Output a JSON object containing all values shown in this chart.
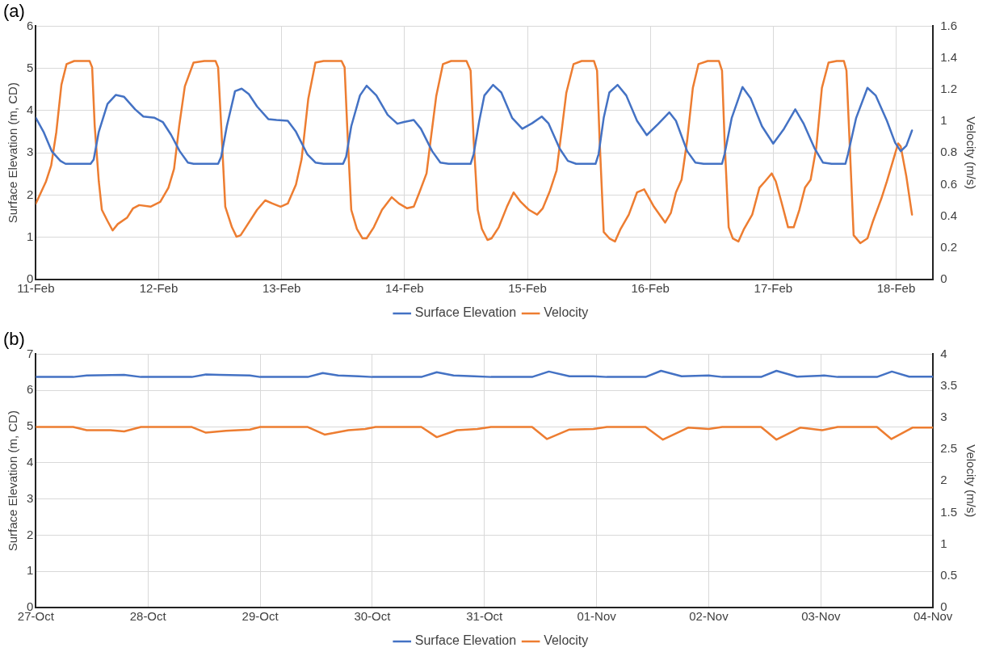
{
  "chart_data": [
    {
      "type": "line",
      "title": "(a)",
      "ylabel": "Surface Elevation (m, CD)",
      "y2label": "Velocity (m/s)",
      "grid": true,
      "legend": "bottom",
      "xlim": [
        "--02-11",
        "--02-18T07:12"
      ],
      "xticks": [
        {
          "value": "--02-11",
          "label": "11-Feb"
        },
        {
          "value": "--02-12",
          "label": "12-Feb"
        },
        {
          "value": "--02-13",
          "label": "13-Feb"
        },
        {
          "value": "--02-14",
          "label": "14-Feb"
        },
        {
          "value": "--02-15",
          "label": "15-Feb"
        },
        {
          "value": "--02-16",
          "label": "16-Feb"
        },
        {
          "value": "--02-17",
          "label": "17-Feb"
        },
        {
          "value": "--02-18",
          "label": "18-Feb"
        }
      ],
      "ylim": [
        0,
        6
      ],
      "yticks": [
        0,
        1,
        2,
        3,
        4,
        5,
        6
      ],
      "y2lim": [
        0,
        1.6
      ],
      "y2ticks": [
        0,
        0.2,
        0.4,
        0.6,
        0.8,
        1,
        1.2,
        1.4,
        1.6
      ],
      "series": [
        {
          "name": "Surface Elevation",
          "color": "#4472c4",
          "x": [
            "--02-11T00:00",
            "--02-11T01:30",
            "--02-11T03:06",
            "--02-11T04:48",
            "--02-11T05:48",
            "--02-11T10:42",
            "--02-11T11:18",
            "--02-11T12:18",
            "--02-11T14:00",
            "--02-11T15:36",
            "--02-11T17:12",
            "--02-11T19:24",
            "--02-11T21:00",
            "--02-11T23:12",
            "--02-12T00:48",
            "--02-12T02:24",
            "--02-12T04:06",
            "--02-12T05:42",
            "--02-12T06:48",
            "--02-12T11:36",
            "--02-12T12:12",
            "--02-12T13:18",
            "--02-12T14:54",
            "--02-12T16:12",
            "--02-12T17:36",
            "--02-12T19:12",
            "--02-12T21:24",
            "--02-12T23:00",
            "--02-13T01:12",
            "--02-13T02:48",
            "--02-13T05:00",
            "--02-13T06:36",
            "--02-13T08:12",
            "--02-13T12:00",
            "--02-13T12:36",
            "--02-13T13:36",
            "--02-13T15:18",
            "--02-13T16:36",
            "--02-13T18:30",
            "--02-13T20:42",
            "--02-13T22:36",
            "--02-13T23:54",
            "--02-14T01:48",
            "--02-14T03:12",
            "--02-14T05:24",
            "--02-14T07:00",
            "--02-14T08:36",
            "--02-14T12:54",
            "--02-14T13:30",
            "--02-14T14:36",
            "--02-14T15:36",
            "--02-14T17:18",
            "--02-14T18:54",
            "--02-14T21:00",
            "--02-14T23:00",
            "--02-15T00:54",
            "--02-15T02:48",
            "--02-15T04:06",
            "--02-15T06:18",
            "--02-15T07:54",
            "--02-15T09:30",
            "--02-15T13:18",
            "--02-15T13:54",
            "--02-15T14:54",
            "--02-15T16:00",
            "--02-15T17:36",
            "--02-15T19:18",
            "--02-15T21:24",
            "--02-15T23:18",
            "--02-16T01:30",
            "--02-16T03:42",
            "--02-16T05:00",
            "--02-16T07:12",
            "--02-16T08:48",
            "--02-16T10:24",
            "--02-16T14:00",
            "--02-16T14:30",
            "--02-16T15:54",
            "--02-16T18:00",
            "--02-16T19:36",
            "--02-16T21:48",
            "--02-17T00:00",
            "--02-17T02:06",
            "--02-17T04:18",
            "--02-17T05:54",
            "--02-17T08:06",
            "--02-17T09:42",
            "--02-17T11:24",
            "--02-17T14:06",
            "--02-17T14:36",
            "--02-17T16:12",
            "--02-17T18:24",
            "--02-17T20:00",
            "--02-17T22:12",
            "--02-17T23:48",
            "--02-18T00:54",
            "--02-18T02:00",
            "--02-18T03:06"
          ],
          "values": [
            3.83,
            3.5,
            3.04,
            2.81,
            2.74,
            2.74,
            2.84,
            3.5,
            4.16,
            4.37,
            4.33,
            4.03,
            3.86,
            3.83,
            3.73,
            3.43,
            3.04,
            2.77,
            2.74,
            2.74,
            2.91,
            3.63,
            4.46,
            4.52,
            4.39,
            4.1,
            3.8,
            3.78,
            3.76,
            3.5,
            2.97,
            2.77,
            2.74,
            2.74,
            2.91,
            3.63,
            4.36,
            4.59,
            4.36,
            3.9,
            3.69,
            3.73,
            3.78,
            3.57,
            3.04,
            2.77,
            2.74,
            2.74,
            2.97,
            3.76,
            4.36,
            4.61,
            4.43,
            3.83,
            3.57,
            3.7,
            3.86,
            3.7,
            3.1,
            2.81,
            2.74,
            2.74,
            2.97,
            3.83,
            4.43,
            4.61,
            4.36,
            3.76,
            3.42,
            3.68,
            3.96,
            3.76,
            3.04,
            2.77,
            2.74,
            2.74,
            2.97,
            3.83,
            4.56,
            4.29,
            3.63,
            3.22,
            3.57,
            4.03,
            3.7,
            3.1,
            2.77,
            2.74,
            2.74,
            2.97,
            3.83,
            4.54,
            4.36,
            3.76,
            3.24,
            3.04,
            3.17,
            3.53
          ]
        },
        {
          "name": "Velocity",
          "color": "#ed7d31",
          "axis": "y2",
          "x": [
            "--02-11T00:00",
            "--02-11T02:00",
            "--02-11T03:00",
            "--02-11T04:00",
            "--02-11T05:00",
            "--02-11T06:00",
            "--02-11T07:30",
            "--02-11T10:30",
            "--02-11T11:00",
            "--02-11T11:30",
            "--02-11T12:18",
            "--02-11T12:54",
            "--02-11T14:00",
            "--02-11T15:00",
            "--02-11T16:00",
            "--02-11T17:48",
            "--02-11T19:00",
            "--02-11T20:12",
            "--02-11T22:24",
            "--02-12T00:18",
            "--02-12T01:54",
            "--02-12T03:00",
            "--02-12T04:00",
            "--02-12T05:06",
            "--02-12T06:48",
            "--02-12T08:54",
            "--02-12T11:06",
            "--02-12T11:36",
            "--02-12T12:12",
            "--02-12T13:00",
            "--02-12T14:18",
            "--02-12T15:12",
            "--02-12T16:00",
            "--02-12T17:00",
            "--02-12T19:12",
            "--02-12T20:48",
            "--02-12T22:12",
            "--02-12T23:48",
            "--02-13T01:12",
            "--02-13T02:48",
            "--02-13T03:54",
            "--02-13T05:12",
            "--02-13T06:36",
            "--02-13T08:12",
            "--02-13T11:42",
            "--02-13T12:18",
            "--02-13T12:48",
            "--02-13T13:36",
            "--02-13T14:42",
            "--02-13T15:48",
            "--02-13T16:36",
            "--02-13T18:00",
            "--02-13T19:36",
            "--02-13T21:30",
            "--02-13T22:54",
            "--02-14T00:30",
            "--02-14T01:48",
            "--02-14T02:54",
            "--02-14T04:18",
            "--02-14T05:06",
            "--02-14T06:12",
            "--02-14T07:30",
            "--02-14T09:06",
            "--02-14T12:06",
            "--02-14T12:54",
            "--02-14T13:30",
            "--02-14T14:18",
            "--02-14T15:06",
            "--02-14T16:12",
            "--02-14T17:00",
            "--02-14T18:24",
            "--02-14T20:00",
            "--02-14T21:18",
            "--02-14T22:42",
            "--02-15T00:18",
            "--02-15T01:54",
            "--02-15T03:00",
            "--02-15T04:24",
            "--02-15T05:42",
            "--02-15T06:48",
            "--02-15T07:36",
            "--02-15T09:00",
            "--02-15T10:36",
            "--02-15T13:00",
            "--02-15T13:36",
            "--02-15T14:06",
            "--02-15T14:54",
            "--02-15T16:00",
            "--02-15T17:06",
            "--02-15T18:12",
            "--02-15T19:48",
            "--02-15T21:24",
            "--02-15T22:48",
            "--02-16T00:42",
            "--02-16T02:54",
            "--02-16T04:00",
            "--02-16T05:00",
            "--02-16T06:06",
            "--02-16T07:12",
            "--02-16T08:18",
            "--02-16T09:24",
            "--02-16T11:12",
            "--02-16T13:24",
            "--02-16T14:00",
            "--02-16T14:30",
            "--02-16T15:18",
            "--02-16T16:06",
            "--02-16T17:12",
            "--02-16T18:18",
            "--02-16T19:54",
            "--02-16T21:18",
            "--02-16T22:24",
            "--02-16T23:42",
            "--02-17T00:30",
            "--02-17T01:36",
            "--02-17T02:54",
            "--02-17T04:00",
            "--02-17T05:06",
            "--02-17T06:12",
            "--02-17T07:18",
            "--02-17T08:24",
            "--02-17T09:30",
            "--02-17T10:48",
            "--02-17T12:24",
            "--02-17T13:48",
            "--02-17T14:18",
            "--02-17T14:54",
            "--02-17T15:42",
            "--02-17T17:00",
            "--02-17T18:24",
            "--02-17T19:30",
            "--02-17T21:06",
            "--02-17T22:12",
            "--02-17T23:18",
            "--02-18T00:24",
            "--02-18T00:54",
            "--02-18T02:00",
            "--02-18T03:06"
          ],
          "values": [
            0.48,
            0.62,
            0.72,
            0.93,
            1.23,
            1.36,
            1.38,
            1.38,
            1.34,
            0.97,
            0.62,
            0.44,
            0.37,
            0.31,
            0.35,
            0.39,
            0.45,
            0.47,
            0.46,
            0.49,
            0.58,
            0.7,
            0.97,
            1.22,
            1.37,
            1.38,
            1.38,
            1.34,
            0.97,
            0.46,
            0.33,
            0.27,
            0.28,
            0.33,
            0.44,
            0.5,
            0.48,
            0.46,
            0.48,
            0.6,
            0.76,
            1.14,
            1.37,
            1.38,
            1.38,
            1.34,
            0.97,
            0.44,
            0.32,
            0.26,
            0.26,
            0.33,
            0.44,
            0.52,
            0.48,
            0.45,
            0.46,
            0.55,
            0.67,
            0.88,
            1.16,
            1.36,
            1.38,
            1.38,
            1.32,
            0.88,
            0.44,
            0.32,
            0.25,
            0.26,
            0.33,
            0.46,
            0.55,
            0.49,
            0.44,
            0.41,
            0.45,
            0.56,
            0.69,
            0.97,
            1.18,
            1.36,
            1.38,
            1.38,
            1.32,
            0.88,
            0.3,
            0.26,
            0.24,
            0.32,
            0.41,
            0.55,
            0.57,
            0.46,
            0.36,
            0.42,
            0.55,
            0.63,
            0.88,
            1.21,
            1.36,
            1.38,
            1.38,
            1.32,
            0.88,
            0.33,
            0.26,
            0.24,
            0.32,
            0.41,
            0.58,
            0.62,
            0.67,
            0.62,
            0.49,
            0.33,
            0.33,
            0.44,
            0.58,
            0.63,
            0.83,
            1.21,
            1.37,
            1.38,
            1.38,
            1.32,
            0.88,
            0.28,
            0.23,
            0.26,
            0.37,
            0.51,
            0.62,
            0.74,
            0.86,
            0.84,
            0.65,
            0.41
          ]
        }
      ]
    },
    {
      "type": "line",
      "title": "(b)",
      "ylabel": "Surface Elevation (m, CD)",
      "y2label": "Velocity (m/s)",
      "grid": true,
      "legend": "bottom",
      "xlim": [
        "--10-27",
        "--11-04"
      ],
      "xticks": [
        {
          "value": "--10-27",
          "label": "27-Oct"
        },
        {
          "value": "--10-28",
          "label": "28-Oct"
        },
        {
          "value": "--10-29",
          "label": "29-Oct"
        },
        {
          "value": "--10-30",
          "label": "30-Oct"
        },
        {
          "value": "--10-31",
          "label": "31-Oct"
        },
        {
          "value": "--11-01",
          "label": "01-Nov"
        },
        {
          "value": "--11-02",
          "label": "02-Nov"
        },
        {
          "value": "--11-03",
          "label": "03-Nov"
        },
        {
          "value": "--11-04",
          "label": "04-Nov"
        }
      ],
      "ylim": [
        0,
        7
      ],
      "yticks": [
        0,
        1,
        2,
        3,
        4,
        5,
        6,
        7
      ],
      "y2lim": [
        0,
        4
      ],
      "y2ticks": [
        0,
        0.5,
        1,
        1.5,
        2,
        2.5,
        3,
        3.5,
        4
      ],
      "series": [
        {
          "name": "Surface Elevation",
          "color": "#4472c4",
          "x": [
            "--10-27T00:00",
            "--10-27T08:00",
            "--10-27T10:54",
            "--10-27T18:54",
            "--10-27T22:30",
            "--10-28T09:24",
            "--10-28T12:24",
            "--10-28T15:18",
            "--10-28T21:48",
            "--10-29T00:00",
            "--10-29T10:12",
            "--10-29T13:24",
            "--10-29T16:42",
            "--10-29T21:06",
            "--10-30T00:00",
            "--10-30T10:30",
            "--10-30T13:48",
            "--10-30T17:24",
            "--10-30T21:48",
            "--10-31T01:24",
            "--10-31T10:12",
            "--10-31T13:48",
            "--10-31T18:12",
            "--10-31T23:18",
            "--11-01T02:12",
            "--11-01T10:30",
            "--11-01T13:48",
            "--11-01T18:12",
            "--11-02T00:00",
            "--11-02T02:54",
            "--11-02T11:12",
            "--11-02T14:30",
            "--11-02T18:54",
            "--11-03T00:42",
            "--11-03T03:36",
            "--11-03T12:00",
            "--11-03T15:12",
            "--11-03T18:54",
            "--11-04T00:00"
          ],
          "values": [
            6.37,
            6.37,
            6.41,
            6.43,
            6.37,
            6.37,
            6.44,
            6.43,
            6.41,
            6.37,
            6.37,
            6.48,
            6.41,
            6.39,
            6.37,
            6.37,
            6.5,
            6.41,
            6.39,
            6.37,
            6.37,
            6.52,
            6.39,
            6.39,
            6.37,
            6.37,
            6.54,
            6.39,
            6.41,
            6.37,
            6.37,
            6.54,
            6.38,
            6.41,
            6.37,
            6.37,
            6.52,
            6.38,
            6.38
          ]
        },
        {
          "name": "Velocity",
          "color": "#ed7d31",
          "axis": "y2",
          "x": [
            "--10-27T00:00",
            "--10-27T08:00",
            "--10-27T10:54",
            "--10-27T16:00",
            "--10-27T18:54",
            "--10-27T22:30",
            "--10-28T09:24",
            "--10-28T12:24",
            "--10-28T16:42",
            "--10-28T21:48",
            "--10-29T00:00",
            "--10-29T10:12",
            "--10-29T13:48",
            "--10-29T18:54",
            "--10-29T22:30",
            "--10-30T00:42",
            "--10-30T10:30",
            "--10-30T13:48",
            "--10-30T18:06",
            "--10-30T22:30",
            "--10-31T01:24",
            "--10-31T10:12",
            "--10-31T13:24",
            "--10-31T18:12",
            "--10-31T23:18",
            "--11-01T02:12",
            "--11-01T10:30",
            "--11-01T14:12",
            "--11-01T19:36",
            "--11-02T00:00",
            "--11-02T02:54",
            "--11-02T11:12",
            "--11-02T14:30",
            "--11-02T19:36",
            "--11-03T00:18",
            "--11-03T03:36",
            "--11-03T12:00",
            "--11-03T15:06",
            "--11-03T19:36",
            "--11-04T00:00"
          ],
          "values": [
            2.85,
            2.85,
            2.8,
            2.8,
            2.78,
            2.85,
            2.85,
            2.76,
            2.79,
            2.81,
            2.85,
            2.85,
            2.73,
            2.8,
            2.82,
            2.85,
            2.85,
            2.69,
            2.8,
            2.82,
            2.85,
            2.85,
            2.66,
            2.81,
            2.82,
            2.85,
            2.85,
            2.65,
            2.84,
            2.82,
            2.85,
            2.85,
            2.65,
            2.84,
            2.8,
            2.85,
            2.85,
            2.66,
            2.84,
            2.84
          ]
        }
      ]
    }
  ]
}
